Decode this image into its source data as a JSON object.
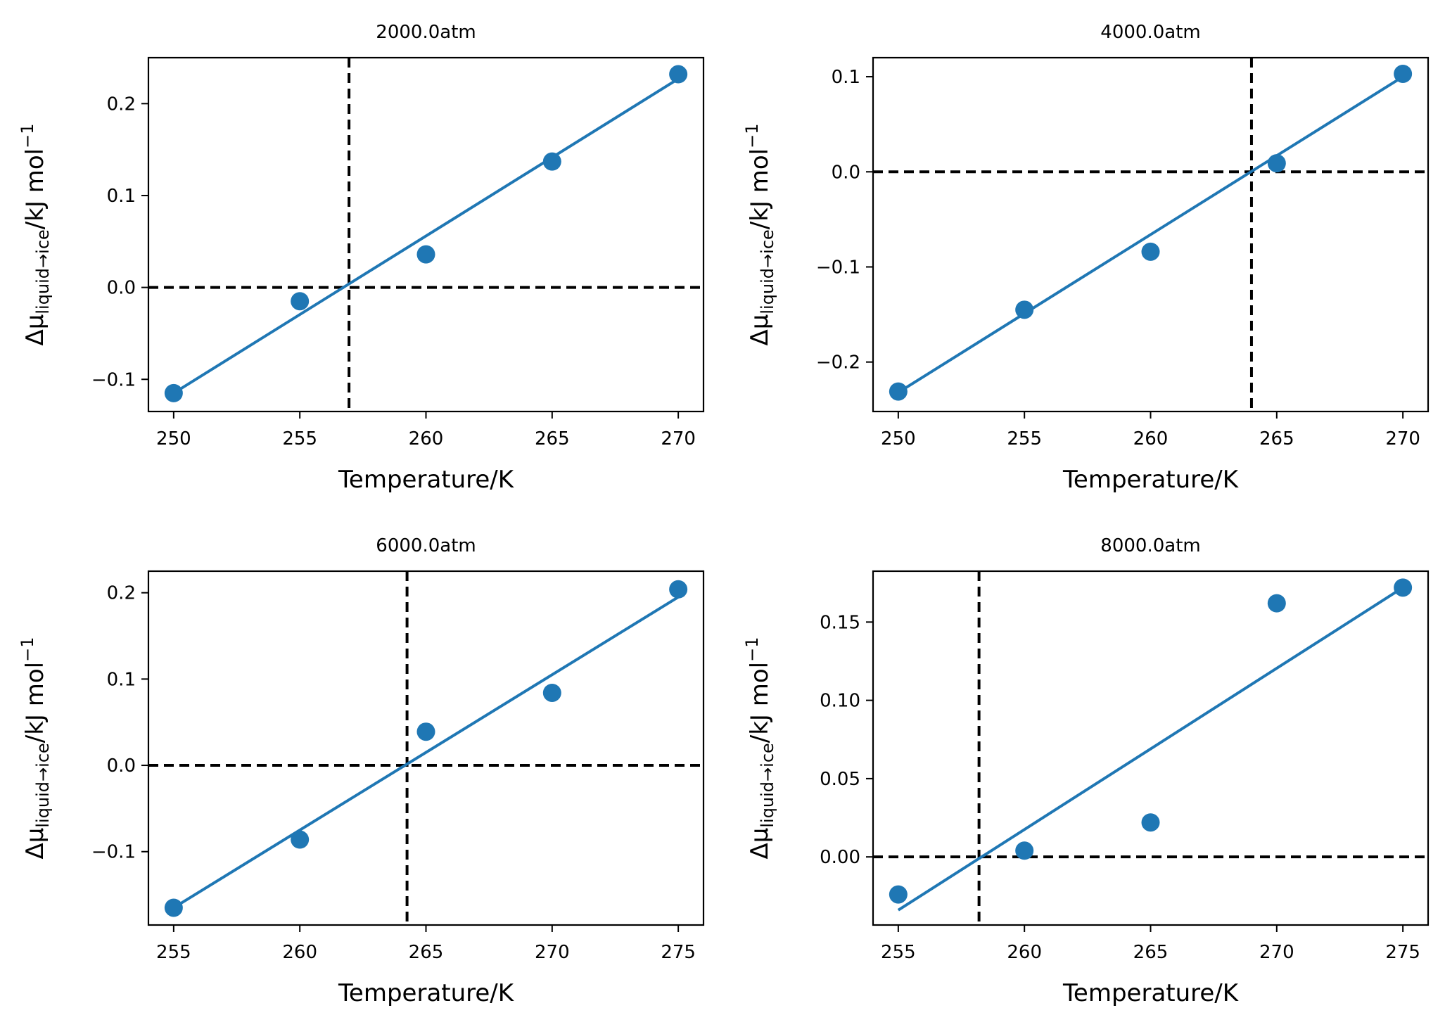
{
  "figure": {
    "colors": {
      "series": "#1f77b4",
      "reference": "#000000",
      "axes": "#000000",
      "background": "#ffffff"
    }
  },
  "chart_data": [
    {
      "type": "scatter",
      "title": "2000.0atm",
      "xlabel": "Temperature/K",
      "ylabel": {
        "base": "Δμ",
        "subscript": "liquid→ice",
        "unit": "/kJ mol",
        "superscript": "−1"
      },
      "xlim": [
        249,
        271
      ],
      "ylim": [
        -0.135,
        0.25
      ],
      "xticks": [
        250,
        255,
        260,
        265,
        270
      ],
      "yticks": [
        -0.1,
        0.0,
        0.1,
        0.2
      ],
      "ytick_labels": [
        "−0.1",
        "0.0",
        "0.1",
        "0.2"
      ],
      "points": {
        "x": [
          250,
          255,
          260,
          265,
          270
        ],
        "y": [
          -0.115,
          -0.015,
          0.036,
          0.137,
          0.232
        ]
      },
      "fit_line": {
        "x": [
          250,
          270
        ],
        "y": [
          -0.115,
          0.227
        ]
      },
      "reference_lines": {
        "horizontal_y": 0.0,
        "vertical_x": 256.95
      }
    },
    {
      "type": "scatter",
      "title": "4000.0atm",
      "xlabel": "Temperature/K",
      "ylabel": {
        "base": "Δμ",
        "subscript": "liquid→ice",
        "unit": "/kJ mol",
        "superscript": "−1"
      },
      "xlim": [
        249,
        271
      ],
      "ylim": [
        -0.252,
        0.12
      ],
      "xticks": [
        250,
        255,
        260,
        265,
        270
      ],
      "yticks": [
        -0.2,
        -0.1,
        0.0,
        0.1
      ],
      "ytick_labels": [
        "−0.2",
        "−0.1",
        "0.0",
        "0.1"
      ],
      "points": {
        "x": [
          250,
          255,
          260,
          265,
          270
        ],
        "y": [
          -0.231,
          -0.145,
          -0.084,
          0.009,
          0.103
        ]
      },
      "fit_line": {
        "x": [
          250,
          270
        ],
        "y": [
          -0.232,
          0.1
        ]
      },
      "reference_lines": {
        "horizontal_y": 0.0,
        "vertical_x": 264.0
      }
    },
    {
      "type": "scatter",
      "title": "6000.0atm",
      "xlabel": "Temperature/K",
      "ylabel": {
        "base": "Δμ",
        "subscript": "liquid→ice",
        "unit": "/kJ mol",
        "superscript": "−1"
      },
      "xlim": [
        254,
        276
      ],
      "ylim": [
        -0.185,
        0.225
      ],
      "xticks": [
        255,
        260,
        265,
        270,
        275
      ],
      "yticks": [
        -0.1,
        0.0,
        0.1,
        0.2
      ],
      "ytick_labels": [
        "−0.1",
        "0.0",
        "0.1",
        "0.2"
      ],
      "points": {
        "x": [
          255,
          260,
          265,
          270,
          275
        ],
        "y": [
          -0.165,
          -0.086,
          0.039,
          0.084,
          0.204
        ]
      },
      "fit_line": {
        "x": [
          255,
          275
        ],
        "y": [
          -0.165,
          0.195
        ]
      },
      "reference_lines": {
        "horizontal_y": 0.0,
        "vertical_x": 264.25
      }
    },
    {
      "type": "scatter",
      "title": "8000.0atm",
      "xlabel": "Temperature/K",
      "ylabel": {
        "base": "Δμ",
        "subscript": "liquid→ice",
        "unit": "/kJ mol",
        "superscript": "−1"
      },
      "xlim": [
        254,
        276
      ],
      "ylim": [
        -0.0435,
        0.1825
      ],
      "xticks": [
        255,
        260,
        265,
        270,
        275
      ],
      "yticks": [
        0.0,
        0.05,
        0.1,
        0.15
      ],
      "ytick_labels": [
        "0.00",
        "0.05",
        "0.10",
        "0.15"
      ],
      "points": {
        "x": [
          255,
          260,
          265,
          270,
          275
        ],
        "y": [
          -0.024,
          0.004,
          0.022,
          0.162,
          0.172
        ]
      },
      "fit_line": {
        "x": [
          255,
          275
        ],
        "y": [
          -0.034,
          0.172
        ]
      },
      "reference_lines": {
        "horizontal_y": 0.0,
        "vertical_x": 258.2
      }
    }
  ]
}
